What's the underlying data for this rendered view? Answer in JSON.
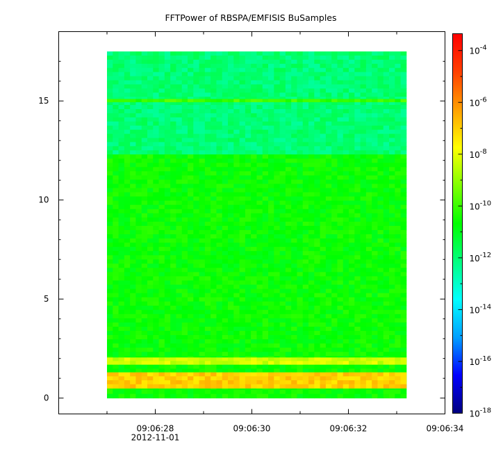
{
  "chart_data": {
    "type": "heatmap",
    "title": "FFTPower of RBSPA/EMFISIS  BuSamples",
    "xlabel": "",
    "ylabel": "",
    "x_ticks": [
      {
        "t": 28,
        "label": "09:06:28",
        "sublabel": "2012-11-01"
      },
      {
        "t": 30,
        "label": "09:06:30",
        "sublabel": ""
      },
      {
        "t": 32,
        "label": "09:06:32",
        "sublabel": ""
      },
      {
        "t": 34,
        "label": "09:06:34",
        "sublabel": ""
      }
    ],
    "x_minor_ticks": [
      27,
      29,
      31,
      33
    ],
    "xlim": [
      26.0,
      34.0
    ],
    "data_xrange": [
      27.0,
      33.2
    ],
    "ylim": [
      -0.8,
      18.5
    ],
    "y_ticks": [
      0,
      5,
      10,
      15
    ],
    "data_yrange": [
      0,
      17.5
    ],
    "colorbar": {
      "scale": "log",
      "range_exponents": [
        -18,
        -3.35
      ],
      "tick_exponents": [
        -18,
        -16,
        -14,
        -12,
        -10,
        -8,
        -6,
        -4
      ],
      "tick_base": "10",
      "colors": [
        "#00007f",
        "#0000ff",
        "#00a0ff",
        "#00ffff",
        "#00ff80",
        "#00ff00",
        "#80ff00",
        "#ffff00",
        "#ffa000",
        "#ff4000",
        "#ff0000"
      ]
    },
    "bands": [
      {
        "y_range": [
          12.3,
          17.5
        ],
        "level": -12.0,
        "description": "upper band"
      },
      {
        "y_range": [
          0,
          12.3
        ],
        "level": -10.6,
        "description": "main band"
      },
      {
        "y_range": [
          14.95,
          15.1
        ],
        "level": -10.0,
        "description": "line"
      },
      {
        "y_range": [
          1.7,
          2.05
        ],
        "level": -8.3,
        "description": "emission"
      },
      {
        "y_range": [
          0.5,
          1.3
        ],
        "level": -7.0,
        "description": "emission"
      }
    ],
    "grid": false
  }
}
